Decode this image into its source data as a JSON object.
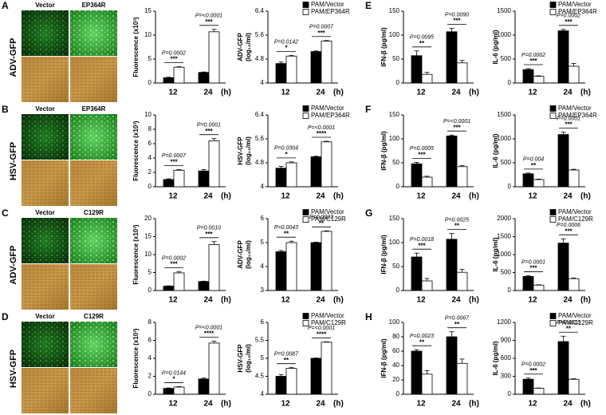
{
  "rows": [
    {
      "letter": "A",
      "virus": "ADV-GFP",
      "image_labels": [
        "Vector",
        "EP364R"
      ],
      "right_letter": "E"
    },
    {
      "letter": "B",
      "virus": "HSV-GFP",
      "image_labels": [
        "Vector",
        "EP364R"
      ],
      "right_letter": "F"
    },
    {
      "letter": "C",
      "virus": "ADV-GFP",
      "image_labels": [
        "Vector",
        "C129R"
      ],
      "right_letter": "G"
    },
    {
      "letter": "D",
      "virus": "HSV-GFP",
      "image_labels": [
        "Vector",
        "C129R"
      ],
      "right_letter": "H"
    }
  ],
  "chart_data": [
    {
      "type": "bar",
      "ylabel": [
        "Fluorescence (x10³)"
      ],
      "categories": [
        "12",
        "24"
      ],
      "xunit": "(h)",
      "ylim": [
        0,
        15
      ],
      "yticks": [
        0,
        5,
        10,
        15
      ],
      "series": [
        {
          "color": "#000000",
          "values": [
            1.1,
            2.2
          ],
          "errors": [
            0.1,
            0.1
          ]
        },
        {
          "color": "#ffffff",
          "values": [
            3.3,
            10.7
          ],
          "errors": [
            0.1,
            0.5
          ]
        }
      ],
      "annotations": [
        {
          "p": "P=0.0002",
          "stars": "***"
        },
        {
          "p": "P=<0.0001",
          "stars": "***"
        }
      ]
    },
    {
      "type": "bar",
      "ylabel": [
        "ADV-GFP",
        "(log₁₀/ml)"
      ],
      "categories": [
        "12",
        "24"
      ],
      "xunit": "(h)",
      "ylim": [
        4,
        6.4
      ],
      "yticks": [
        4,
        4.8,
        5.6,
        6.4
      ],
      "series": [
        {
          "name": "PAM/Vector",
          "color": "#000000",
          "values": [
            4.65,
            5.05
          ],
          "errors": [
            0.05,
            0.02
          ]
        },
        {
          "name": "PAM/EP364R",
          "color": "#ffffff",
          "values": [
            4.9,
            5.4
          ],
          "errors": [
            0.02,
            0.02
          ]
        }
      ],
      "annotations": [
        {
          "p": "P=0.0142",
          "stars": "*"
        },
        {
          "p": "P=0.0007",
          "stars": "***"
        }
      ]
    },
    {
      "type": "bar",
      "ylabel": [
        "IFN-β (pg/ml)"
      ],
      "categories": [
        "12",
        "24"
      ],
      "xunit": "(h)",
      "ylim": [
        0,
        150
      ],
      "yticks": [
        0,
        50,
        100,
        150
      ],
      "series": [
        {
          "color": "#000000",
          "values": [
            57,
            107
          ],
          "errors": [
            10,
            7
          ]
        },
        {
          "color": "#ffffff",
          "values": [
            18,
            42
          ],
          "errors": [
            4,
            5
          ]
        }
      ],
      "annotations": [
        {
          "p": "P=0.0095",
          "stars": "**"
        },
        {
          "p": "P=0.0090",
          "stars": "***"
        }
      ]
    },
    {
      "type": "bar",
      "ylabel": [
        "IL-6 (pg/ml)"
      ],
      "categories": [
        "12",
        "24"
      ],
      "xunit": "(h)",
      "ylim": [
        0,
        1500
      ],
      "yticks": [
        0,
        500,
        1000,
        1500
      ],
      "series": [
        {
          "name": "PAM/Vector",
          "color": "#000000",
          "values": [
            280,
            1090
          ],
          "errors": [
            20,
            30
          ]
        },
        {
          "name": "PAM/EP364R",
          "color": "#ffffff",
          "values": [
            140,
            350
          ],
          "errors": [
            10,
            60
          ]
        }
      ],
      "annotations": [
        {
          "p": "P=0.0002",
          "stars": "***"
        },
        {
          "p": "P=0.0002",
          "stars": "***"
        }
      ]
    },
    {
      "type": "bar",
      "ylabel": [
        "Fluorescence (x10³)"
      ],
      "categories": [
        "12",
        "24"
      ],
      "xunit": "(h)",
      "ylim": [
        0,
        10
      ],
      "yticks": [
        0,
        2,
        4,
        6,
        8,
        10
      ],
      "series": [
        {
          "color": "#000000",
          "values": [
            1.0,
            2.2
          ],
          "errors": [
            0.1,
            0.2
          ]
        },
        {
          "color": "#ffffff",
          "values": [
            2.3,
            6.4
          ],
          "errors": [
            0.1,
            0.3
          ]
        }
      ],
      "annotations": [
        {
          "p": "P=0.0007",
          "stars": "***"
        },
        {
          "p": "P=0.0001",
          "stars": "***"
        }
      ]
    },
    {
      "type": "bar",
      "ylabel": [
        "HSV-GFP",
        "(log₁₀/ml)"
      ],
      "categories": [
        "12",
        "24"
      ],
      "xunit": "(h)",
      "ylim": [
        4,
        6.4
      ],
      "yticks": [
        4,
        4.8,
        5.6,
        6.4
      ],
      "series": [
        {
          "name": "PAM/Vector",
          "color": "#000000",
          "values": [
            4.62,
            5.0
          ],
          "errors": [
            0.06,
            0.02
          ]
        },
        {
          "name": "PAM/EP364R",
          "color": "#ffffff",
          "values": [
            4.8,
            5.5
          ],
          "errors": [
            0.03,
            0.02
          ]
        }
      ],
      "annotations": [
        {
          "p": "P=0.0304",
          "stars": "*"
        },
        {
          "p": "P=<0.0001",
          "stars": "****"
        }
      ]
    },
    {
      "type": "bar",
      "ylabel": [
        "IFN-β (pg/ml)"
      ],
      "categories": [
        "12",
        "24"
      ],
      "xunit": "(h)",
      "ylim": [
        0,
        150
      ],
      "yticks": [
        0,
        50,
        100,
        150
      ],
      "series": [
        {
          "color": "#000000",
          "values": [
            48,
            106
          ],
          "errors": [
            3,
            2
          ]
        },
        {
          "color": "#ffffff",
          "values": [
            20,
            42
          ],
          "errors": [
            2,
            2
          ]
        }
      ],
      "annotations": [
        {
          "p": "P=0.0005",
          "stars": "***"
        },
        {
          "p": "P=<0.0001",
          "stars": "***"
        }
      ]
    },
    {
      "type": "bar",
      "ylabel": [
        "IL-6 (pg/ml)"
      ],
      "categories": [
        "12",
        "24"
      ],
      "xunit": "(h)",
      "ylim": [
        0,
        1500
      ],
      "yticks": [
        0,
        500,
        1000,
        1500
      ],
      "series": [
        {
          "name": "PAM/Vector",
          "color": "#000000",
          "values": [
            270,
            1090
          ],
          "errors": [
            15,
            50
          ]
        },
        {
          "name": "PAM/EP364R",
          "color": "#ffffff",
          "values": [
            150,
            350
          ],
          "errors": [
            10,
            15
          ]
        }
      ],
      "annotations": [
        {
          "p": "P=0.004",
          "stars": "**"
        },
        {
          "p": "P=0.0001",
          "stars": "***"
        }
      ]
    },
    {
      "type": "bar",
      "ylabel": [
        "Fluorescence (x10³)"
      ],
      "categories": [
        "12",
        "24"
      ],
      "xunit": "(h)",
      "ylim": [
        0,
        20
      ],
      "yticks": [
        0,
        5,
        10,
        15,
        20
      ],
      "series": [
        {
          "color": "#000000",
          "values": [
            1.2,
            2.5
          ],
          "errors": [
            0.1,
            0.1
          ]
        },
        {
          "color": "#ffffff",
          "values": [
            4.9,
            12.8
          ],
          "errors": [
            0.3,
            0.8
          ]
        }
      ],
      "annotations": [
        {
          "p": "P=0.0002",
          "stars": "***"
        },
        {
          "p": "P=0.0010",
          "stars": "***"
        }
      ]
    },
    {
      "type": "bar",
      "ylabel": [
        "ADV-GFP",
        "(log₁₀/ml)"
      ],
      "categories": [
        "12",
        "24"
      ],
      "xunit": "(h)",
      "ylim": [
        3,
        6
      ],
      "yticks": [
        3,
        4,
        5,
        6
      ],
      "series": [
        {
          "name": "PAM/Vector",
          "color": "#000000",
          "values": [
            4.62,
            5.0
          ],
          "errors": [
            0.05,
            0.02
          ]
        },
        {
          "name": "PAM/C129R",
          "color": "#ffffff",
          "values": [
            5.0,
            5.47
          ],
          "errors": [
            0.06,
            0.02
          ]
        }
      ],
      "annotations": [
        {
          "p": "P=0.0043",
          "stars": "**"
        },
        {
          "p": "P=0.0023",
          "stars": "**"
        }
      ]
    },
    {
      "type": "bar",
      "ylabel": [
        "IFN-β (pg/ml)"
      ],
      "categories": [
        "12",
        "24"
      ],
      "xunit": "(h)",
      "ylim": [
        0,
        150
      ],
      "yticks": [
        0,
        50,
        100,
        150
      ],
      "series": [
        {
          "color": "#000000",
          "values": [
            70,
            107
          ],
          "errors": [
            8,
            12
          ]
        },
        {
          "color": "#ffffff",
          "values": [
            20,
            38
          ],
          "errors": [
            5,
            6
          ]
        }
      ],
      "annotations": [
        {
          "p": "P=0.0018",
          "stars": "***"
        },
        {
          "p": "P=0.0025",
          "stars": "**"
        }
      ]
    },
    {
      "type": "bar",
      "ylabel": [
        "IL-6 (pg/ml)"
      ],
      "categories": [
        "12",
        "24"
      ],
      "xunit": "(h)",
      "ylim": [
        0,
        2000
      ],
      "yticks": [
        0,
        500,
        1000,
        1500,
        2000
      ],
      "series": [
        {
          "name": "PAM/Vector",
          "color": "#000000",
          "values": [
            390,
            1320
          ],
          "errors": [
            20,
            120
          ]
        },
        {
          "name": "PAM/C129R",
          "color": "#ffffff",
          "values": [
            150,
            330
          ],
          "errors": [
            10,
            20
          ]
        }
      ],
      "annotations": [
        {
          "p": "P=0.0001",
          "stars": "***"
        },
        {
          "p": "P=0.0006",
          "stars": "***"
        }
      ]
    },
    {
      "type": "bar",
      "ylabel": [
        "Fluorescence (x10³)"
      ],
      "categories": [
        "12",
        "24"
      ],
      "xunit": "(h)",
      "ylim": [
        0,
        8
      ],
      "yticks": [
        0,
        2,
        4,
        6,
        8
      ],
      "series": [
        {
          "color": "#000000",
          "values": [
            0.65,
            1.7
          ],
          "errors": [
            0.05,
            0.1
          ]
        },
        {
          "color": "#ffffff",
          "values": [
            0.8,
            5.7
          ],
          "errors": [
            0.05,
            0.2
          ]
        }
      ],
      "annotations": [
        {
          "p": "P=0.0144",
          "stars": "*"
        },
        {
          "p": "P=<0.0001",
          "stars": "****"
        }
      ]
    },
    {
      "type": "bar",
      "ylabel": [
        "HSV-GFP",
        "(log₁₀/ml)"
      ],
      "categories": [
        "12",
        "24"
      ],
      "xunit": "(h)",
      "ylim": [
        4,
        6
      ],
      "yticks": [
        4,
        4.5,
        5,
        5.5,
        6
      ],
      "series": [
        {
          "name": "PAM/Vector",
          "color": "#000000",
          "values": [
            4.5,
            5.0
          ],
          "errors": [
            0.05,
            0.01
          ]
        },
        {
          "name": "PAM/C129R",
          "color": "#ffffff",
          "values": [
            4.72,
            5.45
          ],
          "errors": [
            0.02,
            0.01
          ]
        }
      ],
      "annotations": [
        {
          "p": "P=0.0087",
          "stars": "**"
        },
        {
          "p": "P=<0.0001",
          "stars": "****"
        }
      ]
    },
    {
      "type": "bar",
      "ylabel": [
        "IFN-β (pg/ml)"
      ],
      "categories": [
        "12",
        "24"
      ],
      "xunit": "(h)",
      "ylim": [
        0,
        100
      ],
      "yticks": [
        0,
        20,
        40,
        60,
        80,
        100
      ],
      "series": [
        {
          "color": "#000000",
          "values": [
            60,
            80
          ],
          "errors": [
            2,
            7
          ]
        },
        {
          "color": "#ffffff",
          "values": [
            28,
            43
          ],
          "errors": [
            5,
            6
          ]
        }
      ],
      "annotations": [
        {
          "p": "P=0.0023",
          "stars": "**"
        },
        {
          "p": "P=0.0067",
          "stars": "**"
        }
      ]
    },
    {
      "type": "bar",
      "ylabel": [
        "IL-6 (pg/ml)"
      ],
      "categories": [
        "12",
        "24"
      ],
      "xunit": "(h)",
      "ylim": [
        0,
        1200
      ],
      "yticks": [
        0,
        300,
        600,
        900,
        1200
      ],
      "series": [
        {
          "name": "PAM/Vector",
          "color": "#000000",
          "values": [
            250,
            880
          ],
          "errors": [
            20,
            90
          ]
        },
        {
          "name": "PAM/C129R",
          "color": "#ffffff",
          "values": [
            100,
            250
          ],
          "errors": [
            5,
            10
          ]
        }
      ],
      "annotations": [
        {
          "p": "P=0.0002",
          "stars": "***"
        },
        {
          "p": "P=0.0010",
          "stars": "**"
        }
      ]
    }
  ]
}
